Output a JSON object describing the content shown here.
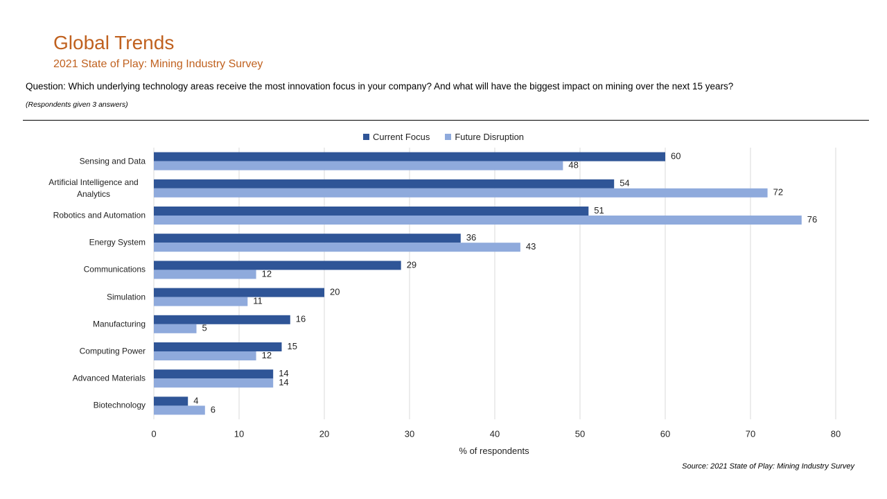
{
  "chart_data": {
    "type": "bar",
    "orientation": "horizontal",
    "title": "Global Trends",
    "subtitle": "2021 State of Play: Mining Industry Survey",
    "question": "Question: Which underlying technology areas receive the most innovation focus in your company? And what will have the biggest impact on mining over the next 15 years?",
    "note": "(Respondents given 3 answers)",
    "source": "Source: 2021 State of Play: Mining Industry Survey",
    "x_label": "% of respondents",
    "categories": [
      "Sensing and Data",
      "Artificial Intelligence and Analytics",
      "Robotics and Automation",
      "Energy System",
      "Communications",
      "Simulation",
      "Manufacturing",
      "Computing Power",
      "Advanced Materials",
      "Biotechnology"
    ],
    "series": [
      {
        "name": "Current Focus",
        "color": "#2f5597",
        "values": [
          60,
          54,
          51,
          36,
          29,
          20,
          16,
          15,
          14,
          4
        ]
      },
      {
        "name": "Future Disruption",
        "color": "#8faadc",
        "values": [
          48,
          72,
          76,
          43,
          12,
          11,
          5,
          12,
          14,
          6
        ]
      }
    ],
    "xlim": [
      0,
      80
    ],
    "xticks": [
      0,
      10,
      20,
      30,
      40,
      50,
      60,
      70,
      80
    ],
    "grid": true,
    "legend": "top"
  }
}
